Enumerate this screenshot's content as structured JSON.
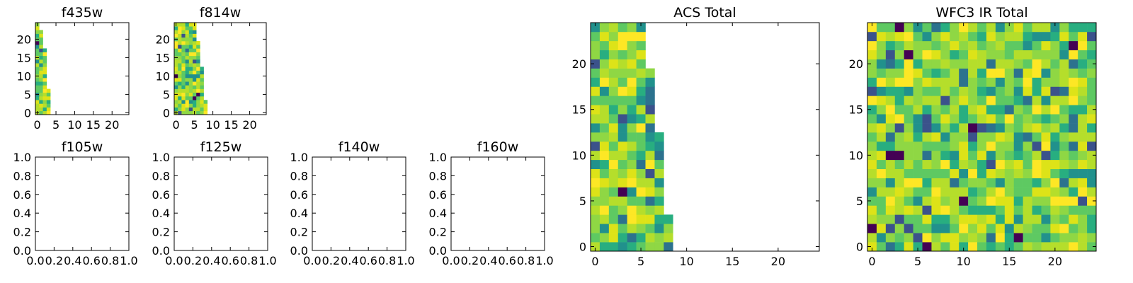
{
  "chart_data": [
    {
      "type": "heatmap",
      "title": "f435w",
      "grid_size": [
        25,
        25
      ],
      "xlim": [
        -0.5,
        24.5
      ],
      "ylim": [
        -0.5,
        24.5
      ],
      "xticks": [
        "0",
        "5",
        "10",
        "15",
        "20"
      ],
      "yticks": [
        "0",
        "5",
        "10",
        "15",
        "20"
      ],
      "show_xticklabels": true,
      "colormap": "viridis",
      "filled_columns_by_row": [
        4,
        4,
        4,
        4,
        4,
        4,
        4,
        3,
        3,
        3,
        3,
        3,
        3,
        3,
        3,
        3,
        3,
        3,
        2,
        2,
        2,
        2,
        2,
        1,
        1
      ]
    },
    {
      "type": "heatmap",
      "title": "f814w",
      "grid_size": [
        25,
        25
      ],
      "xlim": [
        -0.5,
        24.5
      ],
      "ylim": [
        -0.5,
        24.5
      ],
      "xticks": [
        "0",
        "5",
        "10",
        "15",
        "20"
      ],
      "yticks": [
        "0",
        "5",
        "10",
        "15",
        "20"
      ],
      "show_xticklabels": true,
      "colormap": "viridis",
      "filled_columns_by_row": [
        9,
        9,
        9,
        9,
        8,
        8,
        8,
        8,
        8,
        8,
        8,
        8,
        8,
        7,
        7,
        7,
        7,
        7,
        7,
        7,
        6,
        6,
        6,
        6,
        6
      ]
    },
    {
      "type": "heatmap",
      "title": "f105w",
      "xlim": [
        0.0,
        1.0
      ],
      "ylim": [
        0.0,
        1.0
      ],
      "xticks": [
        "0.0",
        "0.2",
        "0.4",
        "0.6",
        "0.8",
        "1.0"
      ],
      "yticks": [
        "0.0",
        "0.2",
        "0.4",
        "0.6",
        "0.8",
        "1.0"
      ],
      "empty": true
    },
    {
      "type": "heatmap",
      "title": "f125w",
      "xlim": [
        0.0,
        1.0
      ],
      "ylim": [
        0.0,
        1.0
      ],
      "xticks": [
        "0.0",
        "0.2",
        "0.4",
        "0.6",
        "0.8",
        "1.0"
      ],
      "yticks": [
        "0.0",
        "0.2",
        "0.4",
        "0.6",
        "0.8",
        "1.0"
      ],
      "empty": true
    },
    {
      "type": "heatmap",
      "title": "f140w",
      "xlim": [
        0.0,
        1.0
      ],
      "ylim": [
        0.0,
        1.0
      ],
      "xticks": [
        "0.0",
        "0.2",
        "0.4",
        "0.6",
        "0.8",
        "1.0"
      ],
      "yticks": [
        "0.0",
        "0.2",
        "0.4",
        "0.6",
        "0.8",
        "1.0"
      ],
      "empty": true
    },
    {
      "type": "heatmap",
      "title": "f160w",
      "xlim": [
        0.0,
        1.0
      ],
      "ylim": [
        0.0,
        1.0
      ],
      "xticks": [
        "0.0",
        "0.2",
        "0.4",
        "0.6",
        "0.8",
        "1.0"
      ],
      "yticks": [
        "0.0",
        "0.2",
        "0.4",
        "0.6",
        "0.8",
        "1.0"
      ],
      "empty": true
    },
    {
      "type": "heatmap",
      "title": "ACS Total",
      "grid_size": [
        25,
        25
      ],
      "xlim": [
        -0.5,
        24.5
      ],
      "ylim": [
        -0.5,
        24.5
      ],
      "xticks": [
        "0",
        "5",
        "10",
        "15",
        "20"
      ],
      "yticks": [
        "0",
        "5",
        "10",
        "15",
        "20"
      ],
      "show_xticklabels": true,
      "colormap": "viridis",
      "filled_columns_by_row": [
        9,
        9,
        9,
        9,
        8,
        8,
        8,
        8,
        8,
        8,
        8,
        8,
        8,
        7,
        7,
        7,
        7,
        7,
        7,
        7,
        6,
        6,
        6,
        6,
        6
      ]
    },
    {
      "type": "heatmap",
      "title": "WFC3 IR Total",
      "grid_size": [
        25,
        25
      ],
      "xlim": [
        -0.5,
        24.5
      ],
      "ylim": [
        -0.5,
        24.5
      ],
      "xticks": [
        "0",
        "5",
        "10",
        "15",
        "20"
      ],
      "yticks": [
        "0",
        "5",
        "10",
        "15",
        "20"
      ],
      "show_xticklabels": true,
      "colormap": "viridis",
      "filled_columns_by_row": [
        25,
        25,
        25,
        25,
        25,
        25,
        25,
        25,
        25,
        25,
        25,
        25,
        25,
        25,
        25,
        25,
        25,
        25,
        25,
        25,
        25,
        25,
        25,
        25,
        25
      ]
    }
  ]
}
